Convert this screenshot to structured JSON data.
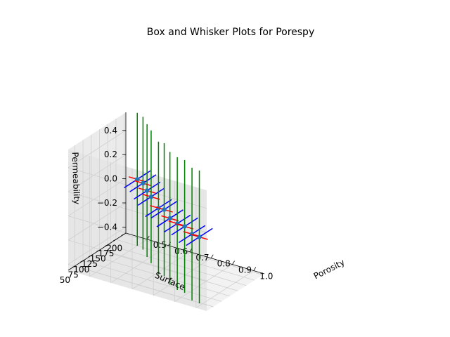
{
  "chart_data": {
    "type": "3d-errorbar",
    "title": "Box and Whisker Plots for Porespy",
    "xlabel": "Porosity",
    "ylabel": "Surface",
    "zlabel": "Permeability",
    "xlim": [
      0.4,
      1.05
    ],
    "ylim": [
      30,
      205
    ],
    "zlim": [
      -0.45,
      0.55
    ],
    "xticks": [
      "0.5",
      "0.6",
      "0.7",
      "0.8",
      "0.9",
      "1.0"
    ],
    "yticks": [
      "50",
      "75",
      "100",
      "125",
      "150",
      "175",
      "200"
    ],
    "zticks": [
      "−0.4",
      "−0.2",
      "0.0",
      "0.2",
      "0.4"
    ],
    "grid": true,
    "series": [
      {
        "x": 0.5,
        "y": 175,
        "z": 0.1,
        "xerr": 0.04,
        "yerr": 40,
        "zerr": 0.55
      },
      {
        "x": 0.55,
        "y": 160,
        "z": 0.12,
        "xerr": 0.04,
        "yerr": 40,
        "zerr": 0.55
      },
      {
        "x": 0.6,
        "y": 140,
        "z": 0.12,
        "xerr": 0.04,
        "yerr": 40,
        "zerr": 0.55
      },
      {
        "x": 0.65,
        "y": 120,
        "z": 0.13,
        "xerr": 0.04,
        "yerr": 40,
        "zerr": 0.55
      },
      {
        "x": 0.7,
        "y": 110,
        "z": 0.08,
        "xerr": 0.04,
        "yerr": 40,
        "zerr": 0.55
      },
      {
        "x": 0.75,
        "y": 95,
        "z": 0.12,
        "xerr": 0.04,
        "yerr": 40,
        "zerr": 0.55
      },
      {
        "x": 0.8,
        "y": 80,
        "z": 0.1,
        "xerr": 0.04,
        "yerr": 40,
        "zerr": 0.55
      },
      {
        "x": 0.85,
        "y": 70,
        "z": 0.1,
        "xerr": 0.04,
        "yerr": 40,
        "zerr": 0.55
      },
      {
        "x": 0.9,
        "y": 60,
        "z": 0.12,
        "xerr": 0.04,
        "yerr": 40,
        "zerr": 0.55
      },
      {
        "x": 0.95,
        "y": 50,
        "z": 0.1,
        "xerr": 0.04,
        "yerr": 40,
        "zerr": 0.55
      },
      {
        "x": 1.0,
        "y": 40,
        "z": 0.12,
        "xerr": 0.04,
        "yerr": 40,
        "zerr": 0.55
      }
    ],
    "colors": {
      "x_err": "#ff0000",
      "y_err": "#0000ff",
      "z_err": "#008000",
      "marker": "#1f77b4"
    }
  }
}
